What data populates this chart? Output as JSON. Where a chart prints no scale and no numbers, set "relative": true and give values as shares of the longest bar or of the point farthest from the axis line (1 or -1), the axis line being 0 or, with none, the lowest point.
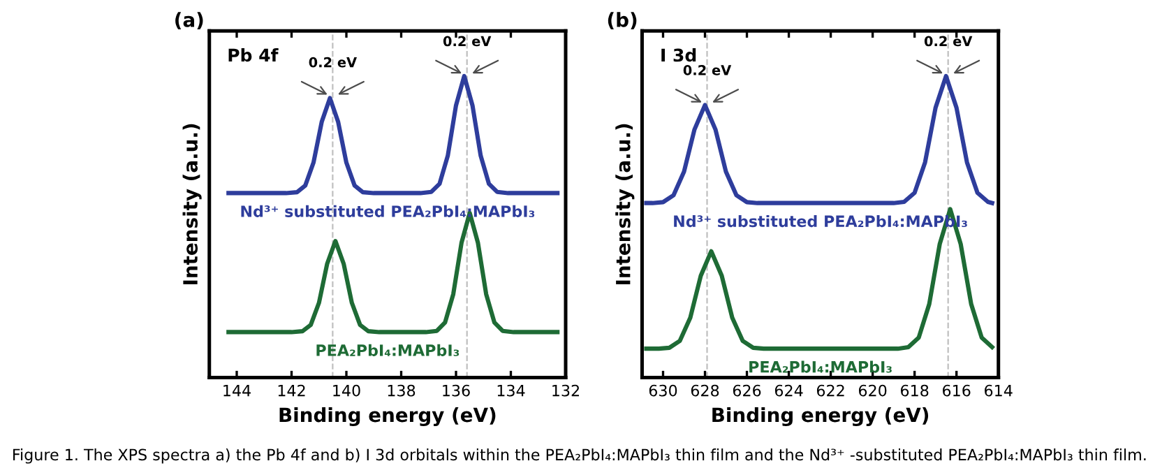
{
  "chart_data": [
    {
      "type": "line",
      "title": "(a)",
      "xlabel": "Binding energy (eV)",
      "ylabel": "Intensity (a.u.)",
      "relative": true,
      "xlim": [
        145,
        132
      ],
      "xticks": [
        144,
        142,
        140,
        138,
        136,
        134,
        132
      ],
      "grid": false,
      "legend": false,
      "marker": "none",
      "line_style": "solid",
      "ref_lines": [
        {
          "axis": "x",
          "value": 140.5,
          "color": "#bfbfbf",
          "line_style": "dashed"
        },
        {
          "axis": "x",
          "value": 135.6,
          "color": "#bfbfbf",
          "line_style": "dashed"
        }
      ],
      "annotations": [
        "Pb 4f",
        {
          "text": "0.2 eV",
          "x": 140.5,
          "y": 0.93
        },
        {
          "text": "0.2 eV",
          "x": 135.6,
          "y": 1.0
        },
        "Figure 1. The XPS spectra a) the Pb 4f and b) I 3d orbitals within the PEA₂PbI₄:MAPbI₃ thin film and the Nd³⁺ -substituted PEA₂PbI₄:MAPbI₃ thin film."
      ],
      "series": [
        {
          "name": "Nd³⁺ substituted PEA₂PbI₄:MAPbI₃",
          "color": "#2e3d9c",
          "x": [
            144.3,
            142.2,
            141.8,
            141.5,
            141.2,
            140.9,
            140.6,
            140.3,
            140.0,
            139.7,
            139.4,
            139.0,
            137.3,
            136.9,
            136.6,
            136.3,
            136.0,
            135.7,
            135.4,
            135.1,
            134.8,
            134.5,
            134.1,
            132.3
          ],
          "values": [
            0.612,
            0.612,
            0.615,
            0.637,
            0.713,
            0.848,
            0.927,
            0.848,
            0.713,
            0.637,
            0.615,
            0.612,
            0.612,
            0.616,
            0.643,
            0.736,
            0.903,
            1.0,
            0.903,
            0.736,
            0.643,
            0.616,
            0.612,
            0.612
          ]
        },
        {
          "name": "PEA₂PbI₄:MAPbI₃",
          "color": "#1e6b35",
          "x": [
            144.3,
            142.0,
            141.6,
            141.3,
            141.0,
            140.7,
            140.4,
            140.1,
            139.8,
            139.5,
            139.2,
            138.8,
            137.1,
            136.7,
            136.4,
            136.1,
            135.8,
            135.5,
            135.2,
            134.9,
            134.6,
            134.3,
            133.9,
            132.3
          ],
          "values": [
            0.151,
            0.151,
            0.154,
            0.175,
            0.248,
            0.378,
            0.453,
            0.378,
            0.248,
            0.175,
            0.154,
            0.151,
            0.151,
            0.155,
            0.183,
            0.277,
            0.447,
            0.546,
            0.447,
            0.277,
            0.183,
            0.155,
            0.151,
            0.151
          ]
        }
      ]
    },
    {
      "type": "line",
      "title": "(b)",
      "xlabel": "Binding energy (eV)",
      "ylabel": "Intensity (a.u.)",
      "relative": true,
      "xlim": [
        631,
        614
      ],
      "xticks": [
        630,
        628,
        626,
        624,
        622,
        620,
        618,
        616,
        614
      ],
      "grid": false,
      "legend": false,
      "marker": "none",
      "line_style": "solid",
      "ref_lines": [
        {
          "axis": "x",
          "value": 627.9,
          "color": "#bfbfbf",
          "line_style": "dashed"
        },
        {
          "axis": "x",
          "value": 616.4,
          "color": "#bfbfbf",
          "line_style": "dashed"
        }
      ],
      "annotations": [
        "I 3d",
        {
          "text": "0.2 eV",
          "x": 627.9,
          "y": 0.904
        },
        {
          "text": "0.2 eV",
          "x": 616.4,
          "y": 1.0
        }
      ],
      "series": [
        {
          "name": "Nd³⁺ substituted PEA₂PbI₄:MAPbI₃",
          "color": "#2e3d9c",
          "x": [
            630.8,
            630.5,
            630.0,
            629.5,
            629.0,
            628.5,
            628.0,
            627.5,
            627.0,
            626.5,
            626.0,
            625.5,
            619.0,
            618.5,
            618.0,
            617.5,
            617.0,
            616.5,
            616.0,
            615.5,
            615.0,
            614.5,
            614.3
          ],
          "values": [
            0.579,
            0.579,
            0.582,
            0.605,
            0.683,
            0.823,
            0.904,
            0.823,
            0.683,
            0.605,
            0.582,
            0.579,
            0.579,
            0.583,
            0.613,
            0.714,
            0.895,
            1.0,
            0.895,
            0.714,
            0.613,
            0.583,
            0.579
          ]
        },
        {
          "name": "PEA₂PbI₄:MAPbI₃",
          "color": "#1e6b35",
          "x": [
            630.8,
            630.2,
            629.7,
            629.2,
            628.7,
            628.2,
            627.7,
            627.2,
            626.7,
            626.2,
            625.7,
            625.2,
            618.8,
            618.3,
            617.8,
            617.3,
            616.8,
            616.3,
            615.8,
            615.3,
            614.8,
            614.3
          ],
          "values": [
            0.096,
            0.096,
            0.099,
            0.122,
            0.199,
            0.338,
            0.419,
            0.338,
            0.199,
            0.122,
            0.099,
            0.096,
            0.096,
            0.101,
            0.133,
            0.244,
            0.443,
            0.559,
            0.443,
            0.244,
            0.133,
            0.101
          ]
        }
      ]
    }
  ]
}
